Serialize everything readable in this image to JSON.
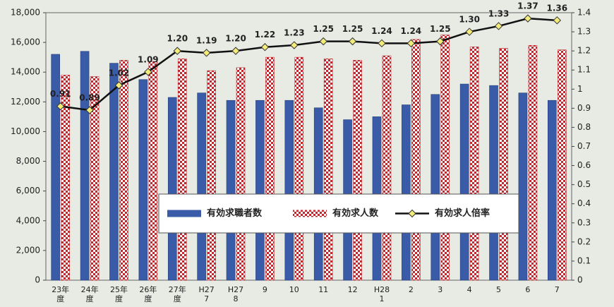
{
  "chart_data": {
    "type": "bar_line",
    "categories": [
      "23年\n度",
      "24年\n度",
      "25年\n度",
      "26年\n度",
      "27年\n度",
      "H27\n7",
      "H27\n8",
      "9",
      "10",
      "11",
      "12",
      "H28\n1",
      "2",
      "3",
      "4",
      "5",
      "6",
      "7"
    ],
    "series": [
      {
        "name": "有効求職者数",
        "type": "bar",
        "color": "#3a5ba8",
        "values": [
          15200,
          15400,
          14600,
          13500,
          12300,
          12600,
          12100,
          12100,
          12100,
          11600,
          10800,
          11000,
          11800,
          12500,
          13200,
          13100,
          12600,
          12100
        ]
      },
      {
        "name": "有効求人数",
        "type": "bar",
        "color": "#c0282d",
        "values": [
          13800,
          13700,
          14800,
          14700,
          14900,
          14100,
          14300,
          15000,
          15000,
          14900,
          14800,
          15100,
          16200,
          16500,
          15700,
          15600,
          15800,
          15500
        ]
      },
      {
        "name": "有効求人倍率",
        "type": "line",
        "axis": "y2",
        "color": "#111111",
        "marker_color": "#f3ec7a",
        "values": [
          0.91,
          0.89,
          1.02,
          1.09,
          1.2,
          1.19,
          1.2,
          1.22,
          1.23,
          1.25,
          1.25,
          1.24,
          1.24,
          1.25,
          1.3,
          1.33,
          1.37,
          1.36
        ],
        "value_labels": [
          "0.91",
          "0.89",
          "1.02",
          "1.09",
          "1.20",
          "1.19",
          "1.20",
          "1.22",
          "1.23",
          "1.25",
          "1.25",
          "1.24",
          "1.24",
          "1.25",
          "1.30",
          "1.33",
          "1.37",
          "1.36"
        ]
      }
    ],
    "ylim": [
      0,
      18000
    ],
    "yticks": [
      0,
      {
        "value": 2000,
        "label": "2,000"
      },
      {
        "value": 4000,
        "label": "4,000"
      },
      {
        "value": 6000,
        "label": "6,000"
      },
      {
        "value": 8000,
        "label": "8,000"
      },
      {
        "value": 10000,
        "label": "10,000"
      },
      {
        "value": 12000,
        "label": "12,000"
      },
      {
        "value": 14000,
        "label": "14,000"
      },
      {
        "value": 16000,
        "label": "16,000"
      },
      {
        "value": 18000,
        "label": "18,000"
      }
    ],
    "y2lim": [
      0,
      1.4
    ],
    "y2ticks": [
      0,
      0.1,
      0.2,
      0.3,
      0.4,
      0.5,
      0.6,
      0.7,
      0.8,
      0.9,
      1,
      1.1,
      1.2,
      1.3,
      1.4
    ],
    "legend": "bottom-center"
  }
}
